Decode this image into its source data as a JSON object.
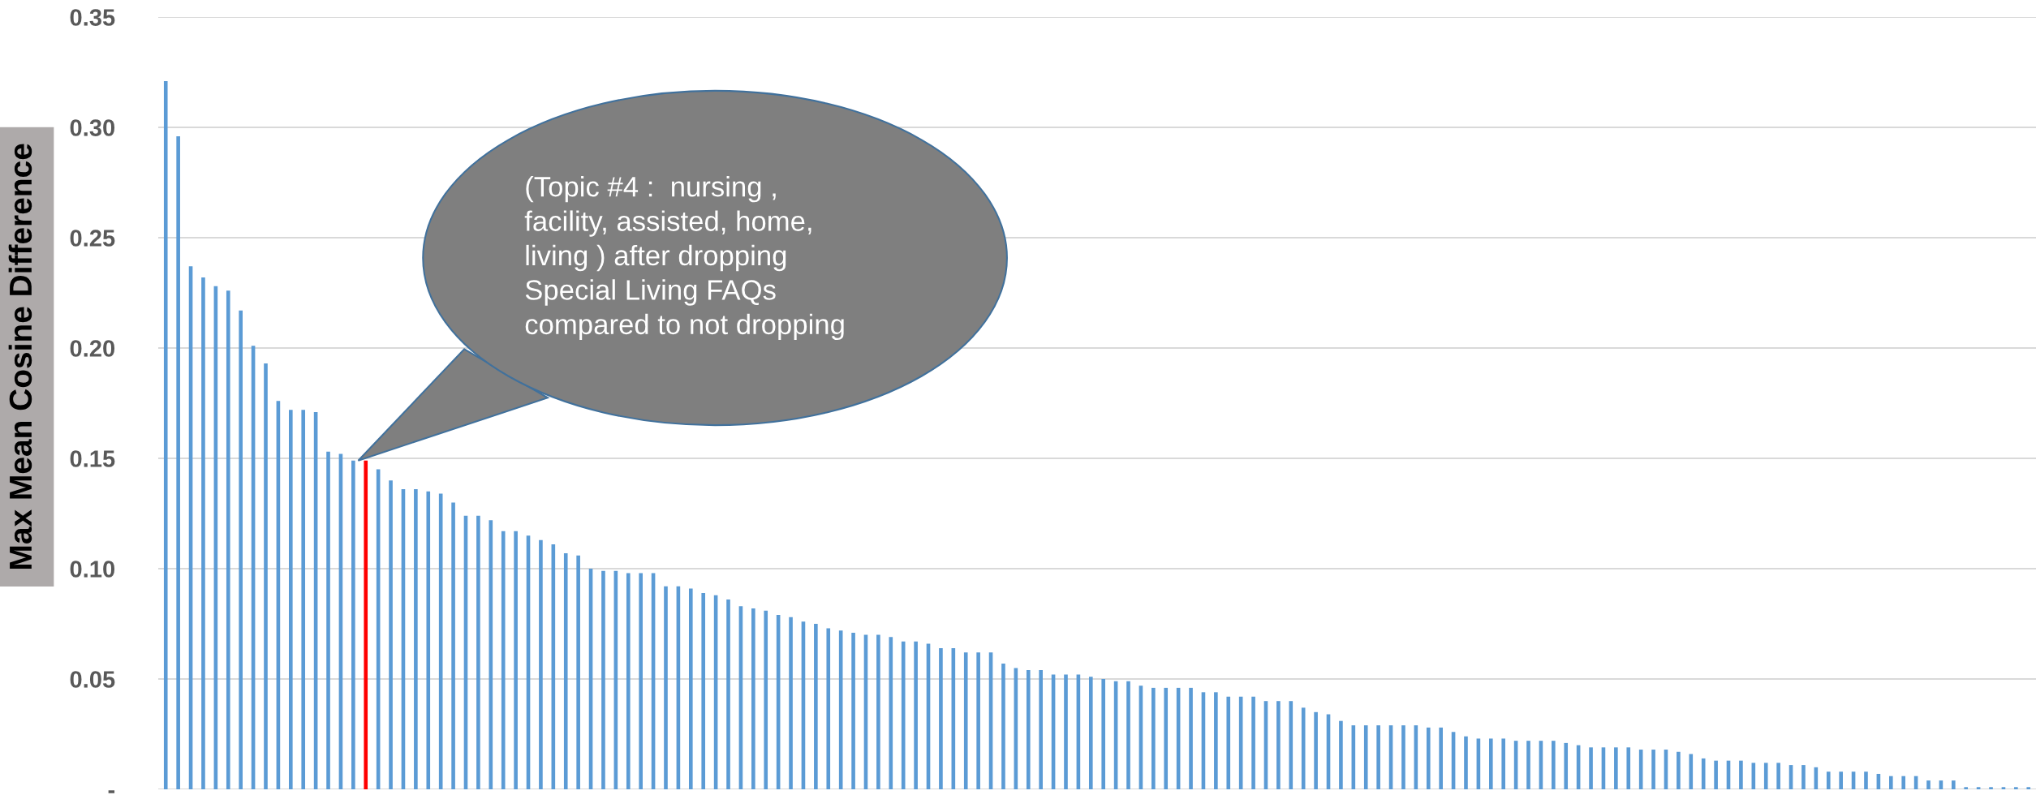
{
  "chart_data": {
    "type": "bar",
    "ylabel": "Max Mean Cosine Difference",
    "categories": [
      null,
      null,
      null,
      null,
      null,
      null,
      null,
      null,
      null,
      null,
      null,
      null,
      null,
      null,
      null,
      null,
      null,
      null,
      null,
      null,
      null,
      null,
      null,
      null,
      null,
      null,
      null,
      null,
      null,
      null,
      null,
      null,
      null,
      null,
      null,
      null,
      null,
      null,
      null,
      null,
      null,
      null,
      null,
      null,
      null,
      null,
      null,
      null,
      null,
      null,
      null,
      null,
      null,
      null,
      null,
      null,
      null,
      null,
      null,
      null,
      null,
      null,
      null,
      null,
      null,
      null,
      null,
      null,
      null,
      null,
      null,
      null,
      null,
      null,
      null,
      null,
      null,
      null,
      null,
      null,
      null,
      null,
      null,
      null,
      null,
      null,
      null,
      null,
      null,
      null,
      null,
      null,
      null,
      null,
      null,
      null,
      null,
      null,
      null,
      null,
      null,
      null,
      null,
      null,
      null,
      null,
      null,
      null,
      null,
      null,
      null,
      null,
      null,
      null,
      null,
      null,
      null,
      null,
      null,
      null,
      null,
      null,
      null,
      null,
      null,
      null,
      null,
      null,
      null,
      null,
      null,
      null,
      null,
      null,
      null,
      null,
      null,
      null,
      null,
      null,
      null,
      null,
      null,
      null,
      null,
      null,
      null,
      null,
      null,
      null
    ],
    "values": [
      0.321,
      0.296,
      0.237,
      0.232,
      0.228,
      0.226,
      0.217,
      0.201,
      0.193,
      0.176,
      0.172,
      0.172,
      0.171,
      0.153,
      0.152,
      0.149,
      0.149,
      0.145,
      0.14,
      0.136,
      0.136,
      0.135,
      0.134,
      0.13,
      0.124,
      0.124,
      0.122,
      0.117,
      0.117,
      0.115,
      0.113,
      0.111,
      0.107,
      0.106,
      0.1,
      0.099,
      0.099,
      0.098,
      0.098,
      0.098,
      0.092,
      0.092,
      0.091,
      0.089,
      0.088,
      0.086,
      0.083,
      0.082,
      0.081,
      0.079,
      0.078,
      0.076,
      0.075,
      0.073,
      0.072,
      0.071,
      0.07,
      0.07,
      0.069,
      0.067,
      0.067,
      0.066,
      0.064,
      0.064,
      0.062,
      0.062,
      0.062,
      0.057,
      0.055,
      0.054,
      0.054,
      0.052,
      0.052,
      0.052,
      0.051,
      0.05,
      0.049,
      0.049,
      0.047,
      0.046,
      0.046,
      0.046,
      0.046,
      0.044,
      0.044,
      0.042,
      0.042,
      0.042,
      0.04,
      0.04,
      0.04,
      0.037,
      0.035,
      0.034,
      0.031,
      0.029,
      0.029,
      0.029,
      0.029,
      0.029,
      0.029,
      0.028,
      0.028,
      0.026,
      0.024,
      0.023,
      0.023,
      0.023,
      0.022,
      0.022,
      0.022,
      0.022,
      0.021,
      0.02,
      0.019,
      0.019,
      0.019,
      0.019,
      0.018,
      0.018,
      0.018,
      0.017,
      0.016,
      0.014,
      0.013,
      0.013,
      0.013,
      0.012,
      0.012,
      0.012,
      0.011,
      0.011,
      0.01,
      0.008,
      0.008,
      0.008,
      0.008,
      0.007,
      0.006,
      0.006,
      0.006,
      0.004,
      0.004,
      0.004,
      0.001,
      0.001,
      0.001,
      0.001,
      0.001,
      0.001
    ],
    "colors": [
      "#5b9bd5",
      "#5b9bd5",
      "#5b9bd5",
      "#5b9bd5",
      "#5b9bd5",
      "#5b9bd5",
      "#5b9bd5",
      "#5b9bd5",
      "#5b9bd5",
      "#5b9bd5",
      "#5b9bd5",
      "#5b9bd5",
      "#5b9bd5",
      "#5b9bd5",
      "#5b9bd5",
      "#5b9bd5",
      "#ff0000",
      "#5b9bd5",
      "#5b9bd5",
      "#5b9bd5",
      "#5b9bd5",
      "#5b9bd5",
      "#5b9bd5",
      "#5b9bd5",
      "#5b9bd5",
      "#5b9bd5",
      "#5b9bd5",
      "#5b9bd5",
      "#5b9bd5",
      "#5b9bd5",
      "#5b9bd5",
      "#5b9bd5",
      "#5b9bd5",
      "#5b9bd5",
      "#5b9bd5",
      "#5b9bd5",
      "#5b9bd5",
      "#5b9bd5",
      "#5b9bd5",
      "#5b9bd5",
      "#5b9bd5",
      "#5b9bd5",
      "#5b9bd5",
      "#5b9bd5",
      "#5b9bd5",
      "#5b9bd5",
      "#5b9bd5",
      "#5b9bd5",
      "#5b9bd5",
      "#5b9bd5",
      "#5b9bd5",
      "#5b9bd5",
      "#5b9bd5",
      "#5b9bd5",
      "#5b9bd5",
      "#5b9bd5",
      "#5b9bd5",
      "#5b9bd5",
      "#5b9bd5",
      "#5b9bd5",
      "#5b9bd5",
      "#5b9bd5",
      "#5b9bd5",
      "#5b9bd5",
      "#5b9bd5",
      "#5b9bd5",
      "#5b9bd5",
      "#5b9bd5",
      "#5b9bd5",
      "#5b9bd5",
      "#5b9bd5",
      "#5b9bd5",
      "#5b9bd5",
      "#5b9bd5",
      "#5b9bd5",
      "#5b9bd5",
      "#5b9bd5",
      "#5b9bd5",
      "#5b9bd5",
      "#5b9bd5",
      "#5b9bd5",
      "#5b9bd5",
      "#5b9bd5",
      "#5b9bd5",
      "#5b9bd5",
      "#5b9bd5",
      "#5b9bd5",
      "#5b9bd5",
      "#5b9bd5",
      "#5b9bd5",
      "#5b9bd5",
      "#5b9bd5",
      "#5b9bd5",
      "#5b9bd5",
      "#5b9bd5",
      "#5b9bd5",
      "#5b9bd5",
      "#5b9bd5",
      "#5b9bd5",
      "#5b9bd5",
      "#5b9bd5",
      "#5b9bd5",
      "#5b9bd5",
      "#5b9bd5",
      "#5b9bd5",
      "#5b9bd5",
      "#5b9bd5",
      "#5b9bd5",
      "#5b9bd5",
      "#5b9bd5",
      "#5b9bd5",
      "#5b9bd5",
      "#5b9bd5",
      "#5b9bd5",
      "#5b9bd5",
      "#5b9bd5",
      "#5b9bd5",
      "#5b9bd5",
      "#5b9bd5",
      "#5b9bd5",
      "#5b9bd5",
      "#5b9bd5",
      "#5b9bd5",
      "#5b9bd5",
      "#5b9bd5",
      "#5b9bd5",
      "#5b9bd5",
      "#5b9bd5",
      "#5b9bd5",
      "#5b9bd5",
      "#5b9bd5",
      "#5b9bd5",
      "#5b9bd5",
      "#5b9bd5",
      "#5b9bd5",
      "#5b9bd5",
      "#5b9bd5",
      "#5b9bd5",
      "#5b9bd5",
      "#5b9bd5",
      "#5b9bd5",
      "#5b9bd5",
      "#5b9bd5",
      "#5b9bd5",
      "#5b9bd5",
      "#5b9bd5",
      "#5b9bd5",
      "#5b9bd5",
      "#5b9bd5",
      "#5b9bd5"
    ],
    "ylim": [
      0,
      0.35
    ],
    "yticks": [
      {
        "value": 0,
        "label": "-"
      },
      {
        "value": 0.05,
        "label": "0.05"
      },
      {
        "value": 0.1,
        "label": "0.10"
      },
      {
        "value": 0.15,
        "label": "0.15"
      },
      {
        "value": 0.2,
        "label": "0.20"
      },
      {
        "value": 0.25,
        "label": "0.25"
      },
      {
        "value": 0.3,
        "label": "0.30"
      },
      {
        "value": 0.35,
        "label": "0.35"
      }
    ],
    "grid": "y",
    "legend": false,
    "annotations": [
      "(Topic #4 :  nursing ,\nfacility, assisted, home,\nliving ) after dropping\nSpecial Living FAQs\ncompared to not dropping"
    ]
  }
}
